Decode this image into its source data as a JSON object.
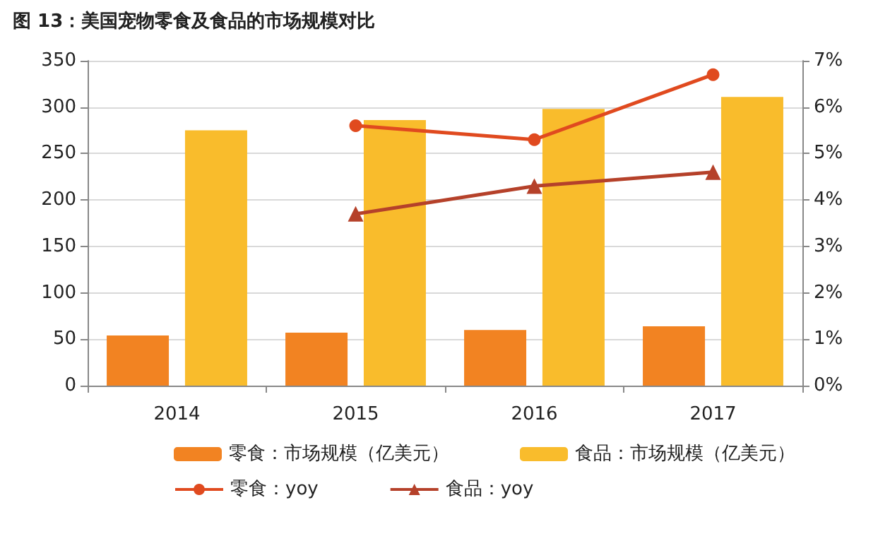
{
  "chart_data": {
    "type": "bar",
    "title": "图 13：美国宠物零食及食品的市场规模对比",
    "categories": [
      "2014",
      "2015",
      "2016",
      "2017"
    ],
    "series": [
      {
        "name": "零食：市场规模（亿美元）",
        "color": "#f28322",
        "values": [
          54,
          57,
          60,
          64
        ]
      },
      {
        "name": "食品：市场规模（亿美元）",
        "color": "#f9bc2c",
        "values": [
          275,
          286,
          298,
          311
        ]
      },
      {
        "name": "零食：yoy",
        "type": "line",
        "axis": "y2",
        "marker": "circle",
        "color": "#e04a1f",
        "values": [
          null,
          5.6,
          5.3,
          6.7
        ]
      },
      {
        "name": "食品：yoy",
        "type": "line",
        "axis": "y2",
        "marker": "triangle",
        "color": "#b5412a",
        "values": [
          null,
          3.7,
          4.3,
          4.6
        ]
      }
    ],
    "ylim": [
      0,
      350
    ],
    "yticks": [
      0,
      50,
      100,
      150,
      200,
      250,
      300,
      350
    ],
    "y2lim": [
      0,
      7
    ],
    "y2ticks": [
      {
        "value": 0,
        "label": "0%"
      },
      {
        "value": 1,
        "label": "1%"
      },
      {
        "value": 2,
        "label": "2%"
      },
      {
        "value": 3,
        "label": "3%"
      },
      {
        "value": 4,
        "label": "4%"
      },
      {
        "value": 5,
        "label": "5%"
      },
      {
        "value": 6,
        "label": "6%"
      },
      {
        "value": 7,
        "label": "7%"
      }
    ],
    "grid": "y",
    "legend": "bottom",
    "line_style": "solid"
  }
}
